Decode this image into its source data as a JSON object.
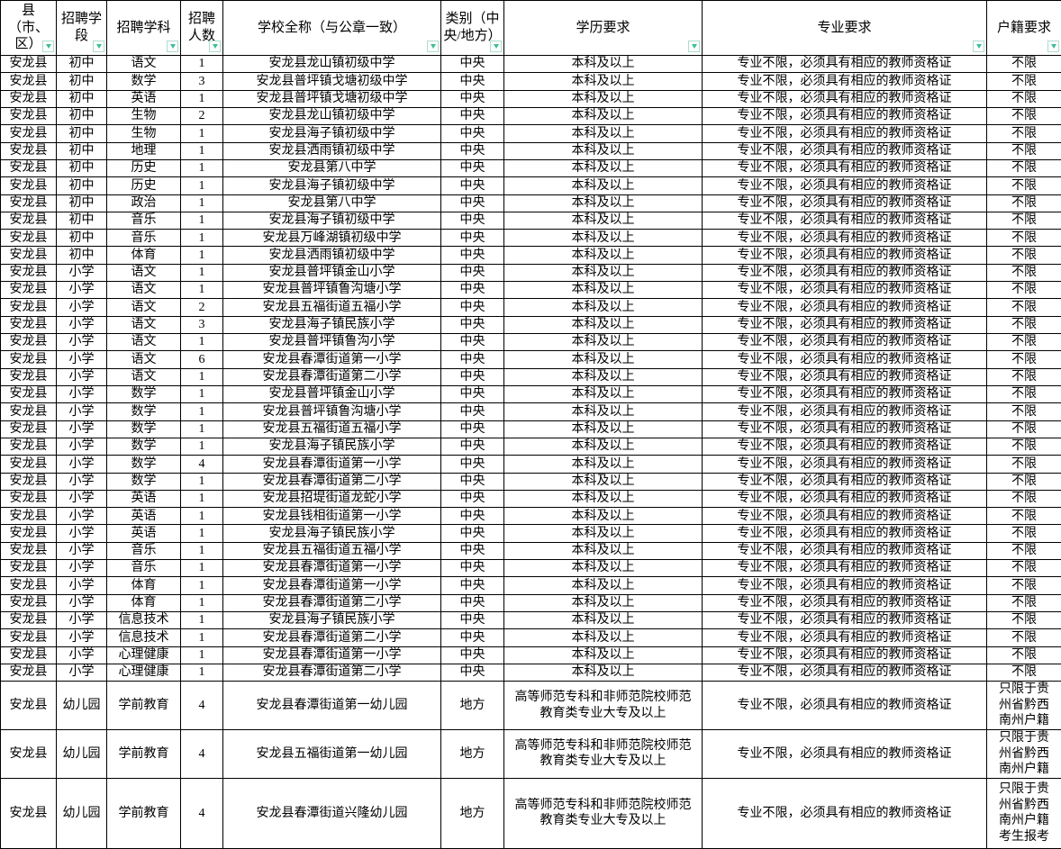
{
  "table": {
    "headers": [
      {
        "label": "县（市、区）"
      },
      {
        "label": "招聘学段"
      },
      {
        "label": "招聘学科"
      },
      {
        "label": "招聘人数"
      },
      {
        "label": "学校全称（与公章一致）"
      },
      {
        "label": "类别（中央/地方）"
      },
      {
        "label": "学历要求"
      },
      {
        "label": "专业要求"
      },
      {
        "label": "户籍要求"
      }
    ],
    "filter_icon": "filter-dropdown-arrow",
    "colors": {
      "emphasis_red": "#ff0000",
      "filter_arrow_teal": "#3fbd9c",
      "grid_line": "#000000",
      "background": "#ffffff"
    },
    "rows": [
      [
        "安龙县",
        "初中",
        "语文",
        "1",
        "安龙县龙山镇初级中学",
        "中央",
        "本科及以上",
        "专业不限，必须具有相应的教师资格证",
        "不限"
      ],
      [
        "安龙县",
        "初中",
        "数学",
        "3",
        "安龙县普坪镇戈塘初级中学",
        "中央",
        "本科及以上",
        "专业不限，必须具有相应的教师资格证",
        "不限"
      ],
      [
        "安龙县",
        "初中",
        "英语",
        "1",
        "安龙县普坪镇戈塘初级中学",
        "中央",
        "本科及以上",
        "专业不限，必须具有相应的教师资格证",
        "不限"
      ],
      [
        "安龙县",
        "初中",
        "生物",
        "2",
        "安龙县龙山镇初级中学",
        "中央",
        "本科及以上",
        "专业不限，必须具有相应的教师资格证",
        "不限"
      ],
      [
        "安龙县",
        "初中",
        "生物",
        "1",
        "安龙县海子镇初级中学",
        "中央",
        "本科及以上",
        "专业不限，必须具有相应的教师资格证",
        "不限"
      ],
      [
        "安龙县",
        "初中",
        "地理",
        "1",
        "安龙县洒雨镇初级中学",
        "中央",
        "本科及以上",
        "专业不限，必须具有相应的教师资格证",
        "不限"
      ],
      [
        "安龙县",
        "初中",
        "历史",
        "1",
        "安龙县第八中学",
        "中央",
        "本科及以上",
        "专业不限，必须具有相应的教师资格证",
        "不限"
      ],
      [
        "安龙县",
        "初中",
        "历史",
        "1",
        "安龙县海子镇初级中学",
        "中央",
        "本科及以上",
        "专业不限，必须具有相应的教师资格证",
        "不限"
      ],
      [
        "安龙县",
        "初中",
        "政治",
        "1",
        "安龙县第八中学",
        "中央",
        "本科及以上",
        "专业不限，必须具有相应的教师资格证",
        "不限"
      ],
      [
        "安龙县",
        "初中",
        "音乐",
        "1",
        "安龙县海子镇初级中学",
        "中央",
        "本科及以上",
        "专业不限，必须具有相应的教师资格证",
        "不限"
      ],
      [
        "安龙县",
        "初中",
        "音乐",
        "1",
        "安龙县万峰湖镇初级中学",
        "中央",
        "本科及以上",
        "专业不限，必须具有相应的教师资格证",
        "不限"
      ],
      [
        "安龙县",
        "初中",
        "体育",
        "1",
        "安龙县洒雨镇初级中学",
        "中央",
        "本科及以上",
        "专业不限，必须具有相应的教师资格证",
        "不限"
      ],
      [
        "安龙县",
        "小学",
        "语文",
        "1",
        "安龙县普坪镇金山小学",
        "中央",
        "本科及以上",
        "专业不限，必须具有相应的教师资格证",
        "不限"
      ],
      [
        "安龙县",
        "小学",
        "语文",
        "1",
        "安龙县普坪镇鲁沟塘小学",
        "中央",
        "本科及以上",
        "专业不限，必须具有相应的教师资格证",
        "不限"
      ],
      [
        "安龙县",
        "小学",
        "语文",
        "2",
        "安龙县五福街道五福小学",
        "中央",
        "本科及以上",
        "专业不限，必须具有相应的教师资格证",
        "不限"
      ],
      [
        "安龙县",
        "小学",
        "语文",
        "3",
        "安龙县海子镇民族小学",
        "中央",
        "本科及以上",
        "专业不限，必须具有相应的教师资格证",
        "不限"
      ],
      [
        "安龙县",
        "小学",
        "语文",
        "1",
        "安龙县普坪镇鲁沟小学",
        "中央",
        "本科及以上",
        "专业不限，必须具有相应的教师资格证",
        "不限"
      ],
      [
        "安龙县",
        "小学",
        "语文",
        "6",
        "安龙县春潭街道第一小学",
        "中央",
        "本科及以上",
        "专业不限，必须具有相应的教师资格证",
        "不限"
      ],
      [
        "安龙县",
        "小学",
        "语文",
        "1",
        "安龙县春潭街道第二小学",
        "中央",
        "本科及以上",
        "专业不限，必须具有相应的教师资格证",
        "不限"
      ],
      [
        "安龙县",
        "小学",
        "数学",
        "1",
        "安龙县普坪镇金山小学",
        "中央",
        "本科及以上",
        "专业不限，必须具有相应的教师资格证",
        "不限"
      ],
      [
        "安龙县",
        "小学",
        "数学",
        "1",
        "安龙县普坪镇鲁沟塘小学",
        "中央",
        "本科及以上",
        "专业不限，必须具有相应的教师资格证",
        "不限"
      ],
      [
        "安龙县",
        "小学",
        "数学",
        "1",
        "安龙县五福街道五福小学",
        "中央",
        "本科及以上",
        "专业不限，必须具有相应的教师资格证",
        "不限"
      ],
      [
        "安龙县",
        "小学",
        "数学",
        "1",
        "安龙县海子镇民族小学",
        "中央",
        "本科及以上",
        "专业不限，必须具有相应的教师资格证",
        "不限"
      ],
      [
        "安龙县",
        "小学",
        "数学",
        "4",
        "安龙县春潭街道第一小学",
        "中央",
        "本科及以上",
        "专业不限，必须具有相应的教师资格证",
        "不限"
      ],
      [
        "安龙县",
        "小学",
        "数学",
        "1",
        "安龙县春潭街道第二小学",
        "中央",
        "本科及以上",
        "专业不限，必须具有相应的教师资格证",
        "不限"
      ],
      [
        "安龙县",
        "小学",
        "英语",
        "1",
        "安龙县招堤街道龙蛇小学",
        "中央",
        "本科及以上",
        "专业不限，必须具有相应的教师资格证",
        "不限"
      ],
      [
        "安龙县",
        "小学",
        "英语",
        "1",
        "安龙县钱相街道第一小学",
        "中央",
        "本科及以上",
        "专业不限，必须具有相应的教师资格证",
        "不限"
      ],
      [
        "安龙县",
        "小学",
        "英语",
        "1",
        "安龙县海子镇民族小学",
        "中央",
        "本科及以上",
        "专业不限，必须具有相应的教师资格证",
        "不限"
      ],
      [
        "安龙县",
        "小学",
        "音乐",
        "1",
        "安龙县五福街道五福小学",
        "中央",
        "本科及以上",
        "专业不限，必须具有相应的教师资格证",
        "不限"
      ],
      [
        "安龙县",
        "小学",
        "音乐",
        "1",
        "安龙县春潭街道第一小学",
        "中央",
        "本科及以上",
        "专业不限，必须具有相应的教师资格证",
        "不限"
      ],
      [
        "安龙县",
        "小学",
        "体育",
        "1",
        "安龙县春潭街道第一小学",
        "中央",
        "本科及以上",
        "专业不限，必须具有相应的教师资格证",
        "不限"
      ],
      [
        "安龙县",
        "小学",
        "体育",
        "1",
        "安龙县春潭街道第二小学",
        "中央",
        "本科及以上",
        "专业不限，必须具有相应的教师资格证",
        "不限"
      ],
      [
        "安龙县",
        "小学",
        "信息技术",
        "1",
        "安龙县海子镇民族小学",
        "中央",
        "本科及以上",
        "专业不限，必须具有相应的教师资格证",
        "不限"
      ],
      [
        "安龙县",
        "小学",
        "信息技术",
        "1",
        "安龙县春潭街道第二小学",
        "中央",
        "本科及以上",
        "专业不限，必须具有相应的教师资格证",
        "不限"
      ],
      [
        "安龙县",
        "小学",
        "心理健康",
        "1",
        "安龙县春潭街道第一小学",
        "中央",
        "本科及以上",
        "专业不限，必须具有相应的教师资格证",
        "不限"
      ],
      [
        "安龙县",
        "小学",
        "心理健康",
        "1",
        "安龙县春潭街道第二小学",
        "中央",
        "本科及以上",
        "专业不限，必须具有相应的教师资格证",
        "不限"
      ],
      [
        "安龙县",
        "幼儿园",
        "学前教育",
        "4",
        "安龙县春潭街道第一幼儿园",
        "地方",
        "高等师范专科和非师范院校师范教育类专业大专及以上",
        "专业不限，必须具有相应的教师资格证",
        "只限于贵州省黔西南州户籍"
      ],
      [
        "安龙县",
        "幼儿园",
        "学前教育",
        "4",
        "安龙县五福街道第一幼儿园",
        "地方",
        "高等师范专科和非师范院校师范教育类专业大专及以上",
        "专业不限，必须具有相应的教师资格证",
        "只限于贵州省黔西南州户籍"
      ],
      [
        "安龙县",
        "幼儿园",
        "学前教育",
        "4",
        "安龙县春潭街道兴隆幼儿园",
        "地方",
        "高等师范专科和非师范院校师范教育类专业大专及以上",
        "专业不限，必须具有相应的教师资格证",
        "只限于贵州省黔西南州户籍考生报考"
      ]
    ]
  }
}
